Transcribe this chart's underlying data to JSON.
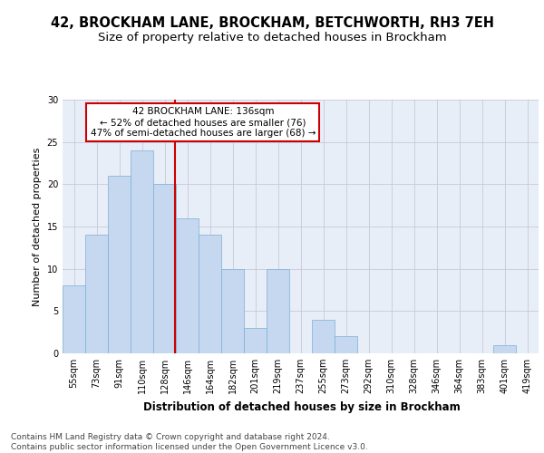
{
  "title1": "42, BROCKHAM LANE, BROCKHAM, BETCHWORTH, RH3 7EH",
  "title2": "Size of property relative to detached houses in Brockham",
  "xlabel": "Distribution of detached houses by size in Brockham",
  "ylabel": "Number of detached properties",
  "categories": [
    "55sqm",
    "73sqm",
    "91sqm",
    "110sqm",
    "128sqm",
    "146sqm",
    "164sqm",
    "182sqm",
    "201sqm",
    "219sqm",
    "237sqm",
    "255sqm",
    "273sqm",
    "292sqm",
    "310sqm",
    "328sqm",
    "346sqm",
    "364sqm",
    "383sqm",
    "401sqm",
    "419sqm"
  ],
  "values": [
    8,
    14,
    21,
    24,
    20,
    16,
    14,
    10,
    3,
    10,
    0,
    4,
    2,
    0,
    0,
    0,
    0,
    0,
    0,
    1,
    0
  ],
  "bar_color": "#c5d8f0",
  "bar_edge_color": "#7bafd4",
  "bar_width": 1.0,
  "ref_line_color": "#cc0000",
  "annotation_text": "42 BROCKHAM LANE: 136sqm\n← 52% of detached houses are smaller (76)\n47% of semi-detached houses are larger (68) →",
  "annotation_box_color": "#ffffff",
  "annotation_box_edge": "#cc0000",
  "ylim": [
    0,
    30
  ],
  "yticks": [
    0,
    5,
    10,
    15,
    20,
    25,
    30
  ],
  "footnote": "Contains HM Land Registry data © Crown copyright and database right 2024.\nContains public sector information licensed under the Open Government Licence v3.0.",
  "bg_color": "#ffffff",
  "plot_bg_color": "#e8eef8",
  "grid_color": "#c8c8d8",
  "title1_fontsize": 10.5,
  "title2_fontsize": 9.5,
  "xlabel_fontsize": 8.5,
  "ylabel_fontsize": 8,
  "tick_fontsize": 7,
  "footnote_fontsize": 6.5,
  "annot_fontsize": 7.5
}
